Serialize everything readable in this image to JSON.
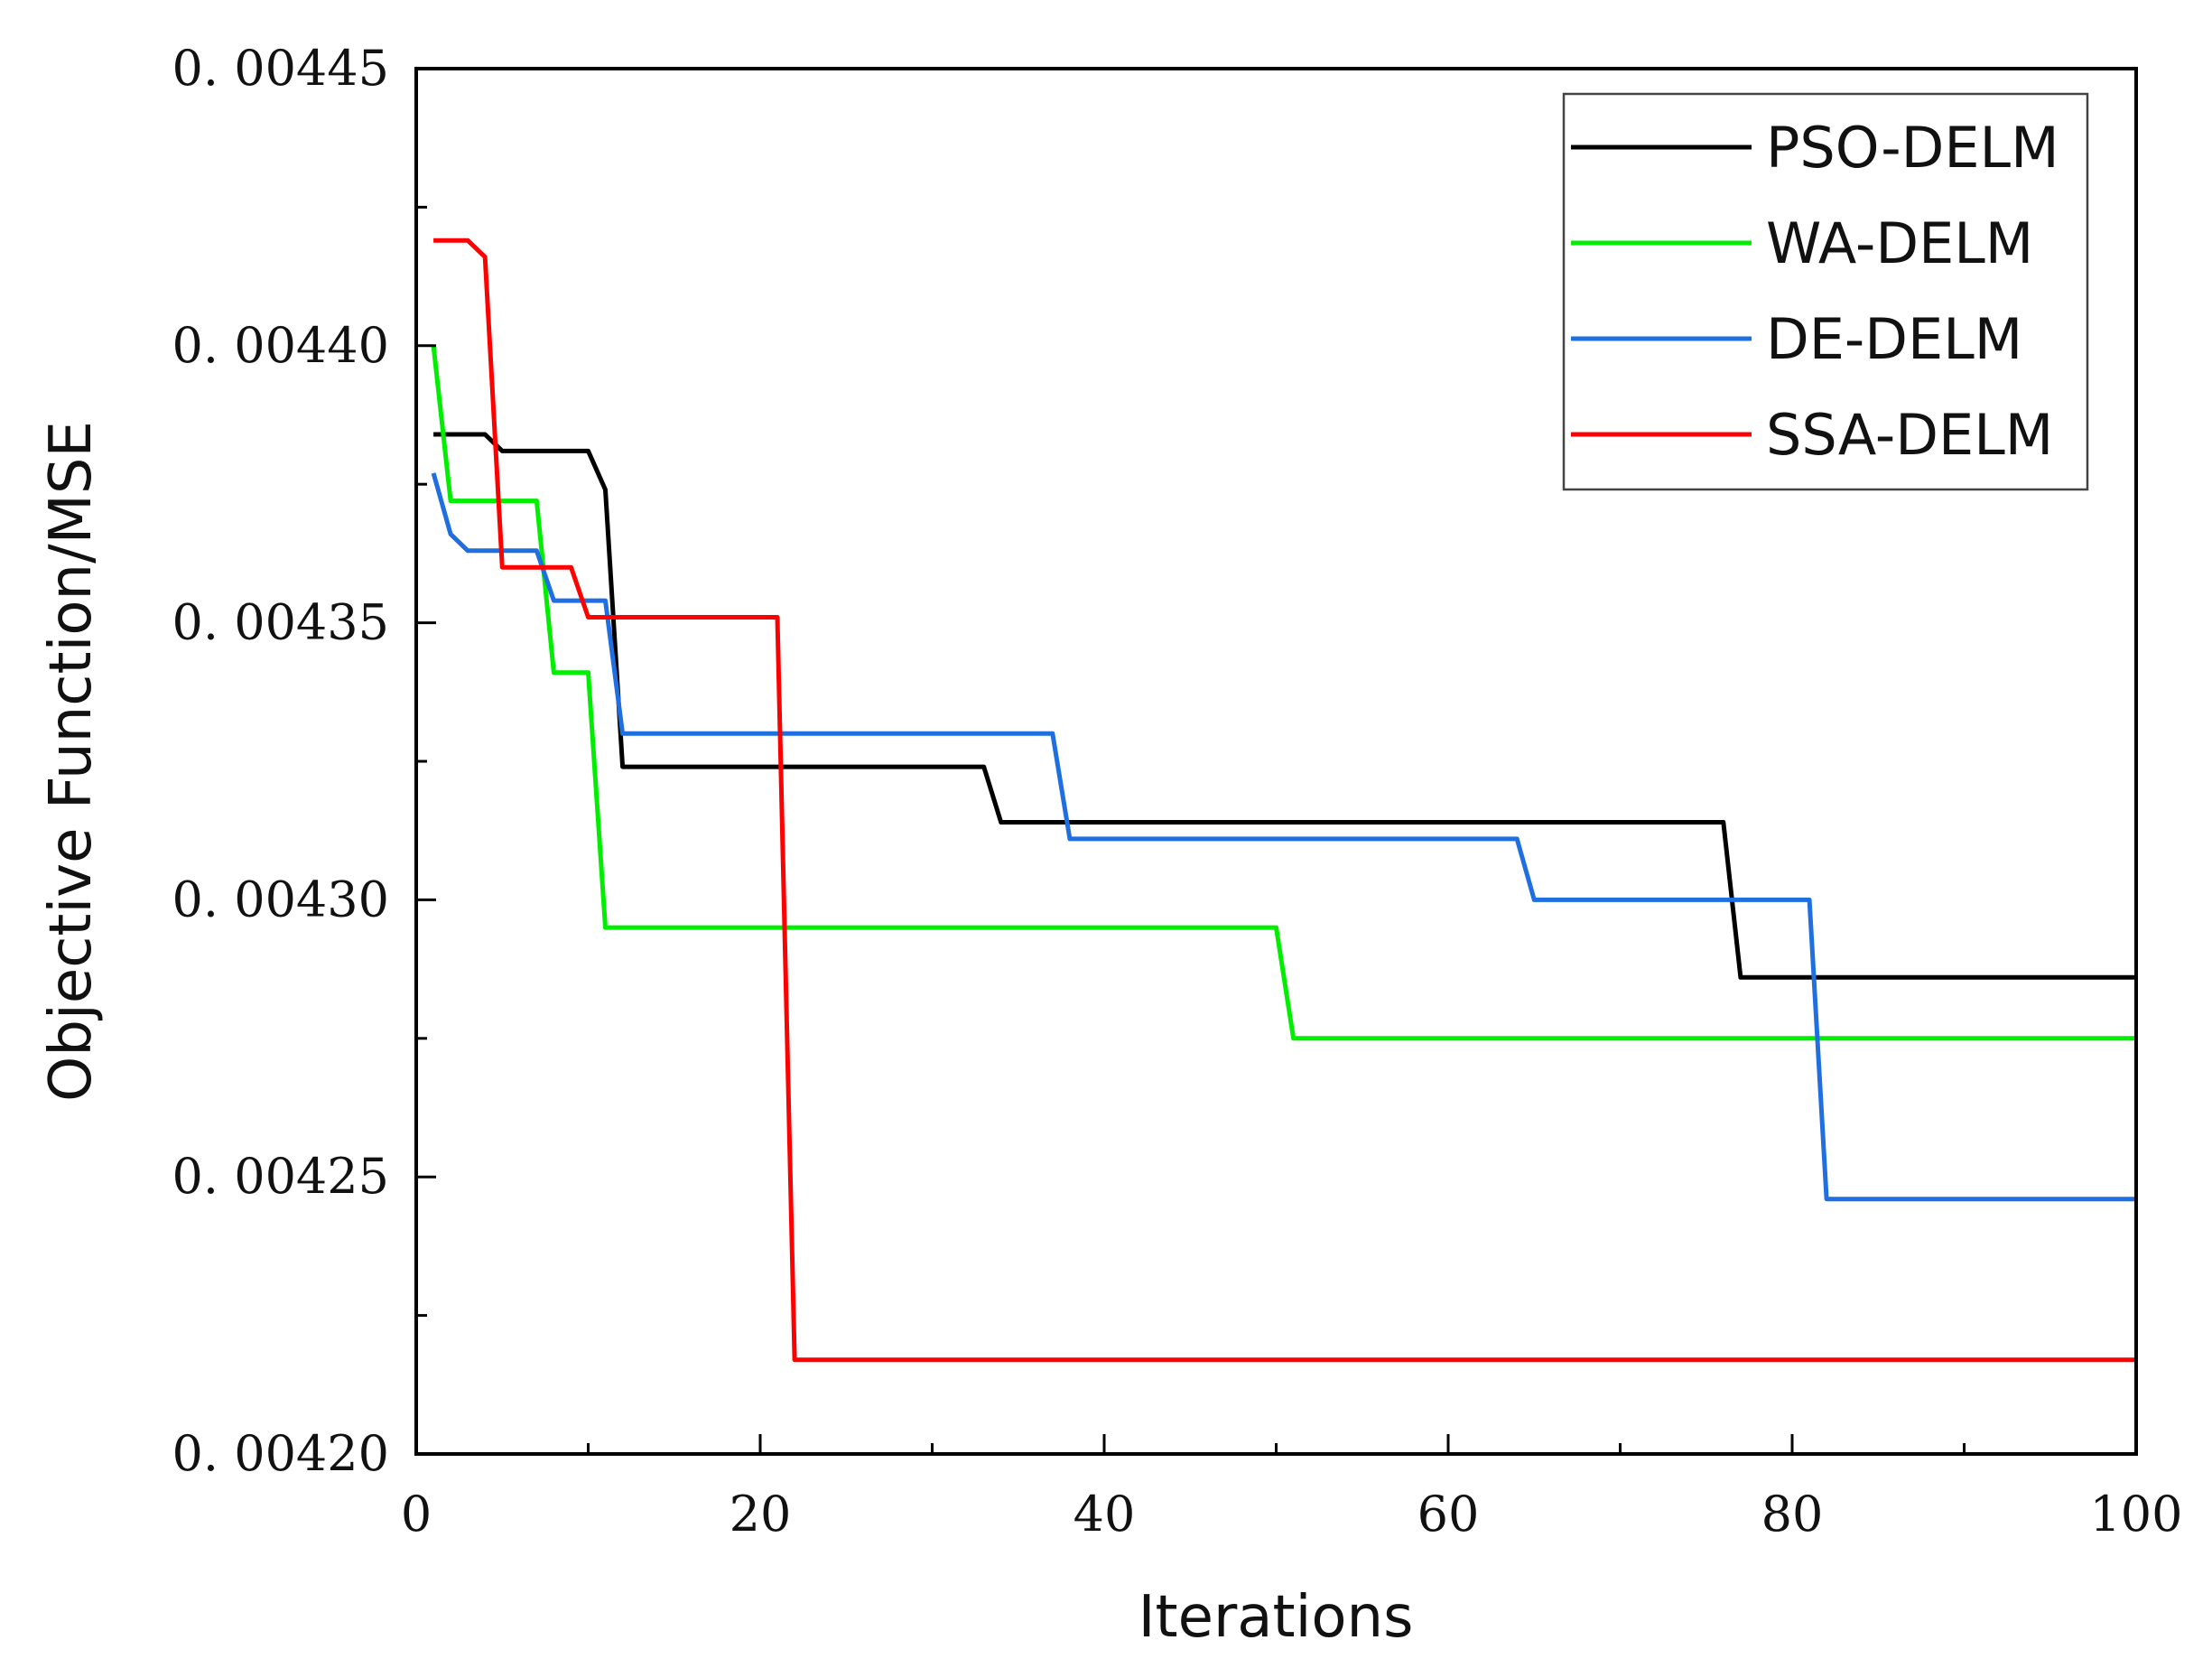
{
  "chart_data": {
    "type": "line",
    "title": "",
    "xlabel": "Iterations",
    "ylabel": "Objective Function/MSE",
    "xlim": [
      0,
      100
    ],
    "ylim": [
      0.0042,
      0.00445
    ],
    "x_ticks": [
      0,
      20,
      40,
      60,
      80,
      100
    ],
    "x_tick_labels": [
      "0",
      "20",
      "40",
      "60",
      "80",
      "100"
    ],
    "y_ticks": [
      0.0042,
      0.00425,
      0.0043,
      0.00435,
      0.0044,
      0.00445
    ],
    "y_tick_labels": [
      "0. 00420",
      "0. 00425",
      "0. 00430",
      "0. 00435",
      "0. 00440",
      "0. 00445"
    ],
    "grid": false,
    "legend_position": "top-right",
    "series": [
      {
        "name": "PSO-DELM",
        "color": "#000000",
        "points": [
          [
            1,
            0.004384
          ],
          [
            4,
            0.004384
          ],
          [
            5,
            0.004381
          ],
          [
            10,
            0.004381
          ],
          [
            11,
            0.004374
          ],
          [
            12,
            0.004324
          ],
          [
            33,
            0.004324
          ],
          [
            34,
            0.004314
          ],
          [
            76,
            0.004314
          ],
          [
            77,
            0.004286
          ],
          [
            100,
            0.004286
          ]
        ]
      },
      {
        "name": "WA-DELM",
        "color": "#00ee00",
        "points": [
          [
            1,
            0.0044
          ],
          [
            2,
            0.004372
          ],
          [
            7,
            0.004372
          ],
          [
            8,
            0.004341
          ],
          [
            10,
            0.004341
          ],
          [
            11,
            0.004295
          ],
          [
            50,
            0.004295
          ],
          [
            51,
            0.004275
          ],
          [
            100,
            0.004275
          ]
        ]
      },
      {
        "name": "DE-DELM",
        "color": "#1f6fe0",
        "points": [
          [
            1,
            0.004377
          ],
          [
            2,
            0.004366
          ],
          [
            3,
            0.004363
          ],
          [
            7,
            0.004363
          ],
          [
            8,
            0.004354
          ],
          [
            11,
            0.004354
          ],
          [
            12,
            0.00433
          ],
          [
            37,
            0.00433
          ],
          [
            38,
            0.004311
          ],
          [
            64,
            0.004311
          ],
          [
            65,
            0.0043
          ],
          [
            81,
            0.0043
          ],
          [
            82,
            0.004246
          ],
          [
            100,
            0.004246
          ]
        ]
      },
      {
        "name": "SSA-DELM",
        "color": "#ff0000",
        "points": [
          [
            1,
            0.004419
          ],
          [
            3,
            0.004419
          ],
          [
            4,
            0.004416
          ],
          [
            5,
            0.00436
          ],
          [
            9,
            0.00436
          ],
          [
            10,
            0.004351
          ],
          [
            21,
            0.004351
          ],
          [
            22,
            0.004217
          ],
          [
            100,
            0.004217
          ]
        ]
      }
    ]
  }
}
